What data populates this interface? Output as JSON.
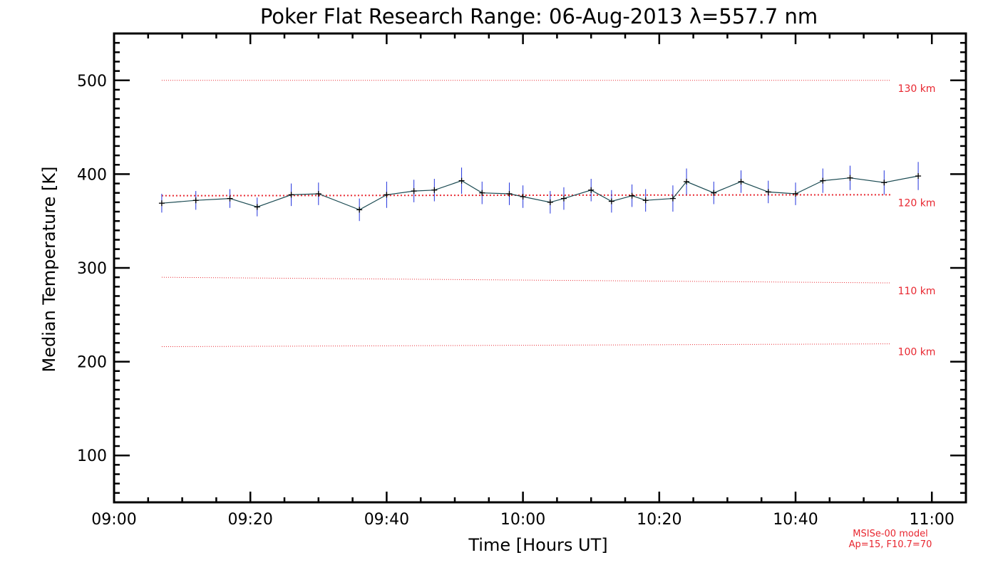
{
  "chart_data": {
    "type": "line",
    "title": "Poker Flat Research Range: 06-Aug-2013 λ=557.7 nm",
    "xlabel": "Time [Hours UT]",
    "ylabel": "Median Temperature [K]",
    "xlim_minutes": [
      540,
      665
    ],
    "ylim": [
      50,
      550
    ],
    "x_ticks": [
      {
        "value": 540,
        "label": "09:00"
      },
      {
        "value": 560,
        "label": "09:20"
      },
      {
        "value": 580,
        "label": "09:40"
      },
      {
        "value": 600,
        "label": "10:00"
      },
      {
        "value": 620,
        "label": "10:20"
      },
      {
        "value": 640,
        "label": "10:40"
      },
      {
        "value": 660,
        "label": "11:00"
      }
    ],
    "y_ticks": [
      {
        "value": 100,
        "label": "100"
      },
      {
        "value": 200,
        "label": "200"
      },
      {
        "value": 300,
        "label": "300"
      },
      {
        "value": 400,
        "label": "400"
      },
      {
        "value": 500,
        "label": "500"
      }
    ],
    "series": [
      {
        "line_color": "#1a4a52",
        "marker_color": "#000000",
        "errorbar_color": "#2233dd",
        "points": [
          {
            "time": "09:07",
            "value": 369,
            "error": 10
          },
          {
            "time": "09:12",
            "value": 372,
            "error": 10
          },
          {
            "time": "09:17",
            "value": 374,
            "error": 10
          },
          {
            "time": "09:21",
            "value": 365,
            "error": 10
          },
          {
            "time": "09:26",
            "value": 378,
            "error": 12
          },
          {
            "time": "09:30",
            "value": 379,
            "error": 12
          },
          {
            "time": "09:36",
            "value": 362,
            "error": 12
          },
          {
            "time": "09:40",
            "value": 378,
            "error": 14
          },
          {
            "time": "09:44",
            "value": 382,
            "error": 12
          },
          {
            "time": "09:47",
            "value": 383,
            "error": 12
          },
          {
            "time": "09:51",
            "value": 393,
            "error": 14
          },
          {
            "time": "09:54",
            "value": 380,
            "error": 12
          },
          {
            "time": "09:58",
            "value": 379,
            "error": 12
          },
          {
            "time": "10:00",
            "value": 376,
            "error": 12
          },
          {
            "time": "10:04",
            "value": 370,
            "error": 12
          },
          {
            "time": "10:06",
            "value": 374,
            "error": 12
          },
          {
            "time": "10:10",
            "value": 383,
            "error": 12
          },
          {
            "time": "10:13",
            "value": 371,
            "error": 12
          },
          {
            "time": "10:16",
            "value": 377,
            "error": 12
          },
          {
            "time": "10:18",
            "value": 372,
            "error": 12
          },
          {
            "time": "10:22",
            "value": 374,
            "error": 14
          },
          {
            "time": "10:24",
            "value": 392,
            "error": 14
          },
          {
            "time": "10:28",
            "value": 380,
            "error": 12
          },
          {
            "time": "10:32",
            "value": 392,
            "error": 12
          },
          {
            "time": "10:36",
            "value": 381,
            "error": 12
          },
          {
            "time": "10:40",
            "value": 379,
            "error": 12
          },
          {
            "time": "10:44",
            "value": 393,
            "error": 13
          },
          {
            "time": "10:48",
            "value": 396,
            "error": 13
          },
          {
            "time": "10:53",
            "value": 391,
            "error": 13
          },
          {
            "time": "10:58",
            "value": 398,
            "error": 15
          }
        ]
      }
    ],
    "reference_lines": [
      {
        "label": "130 km",
        "start_value": 500,
        "end_value": 500,
        "color": "#e8262f",
        "emphasis": "thin"
      },
      {
        "label": "120 km",
        "start_value": 377,
        "end_value": 378,
        "color": "#e8262f",
        "emphasis": "bold"
      },
      {
        "label": "110 km",
        "start_value": 290,
        "end_value": 284,
        "color": "#e8262f",
        "emphasis": "thin"
      },
      {
        "label": "100 km",
        "start_value": 216,
        "end_value": 219,
        "color": "#e8262f",
        "emphasis": "thin"
      }
    ],
    "model_note": [
      "MSISe-00 model",
      "Ap=15, F10.7=70"
    ],
    "grid": false,
    "legend": "none"
  }
}
